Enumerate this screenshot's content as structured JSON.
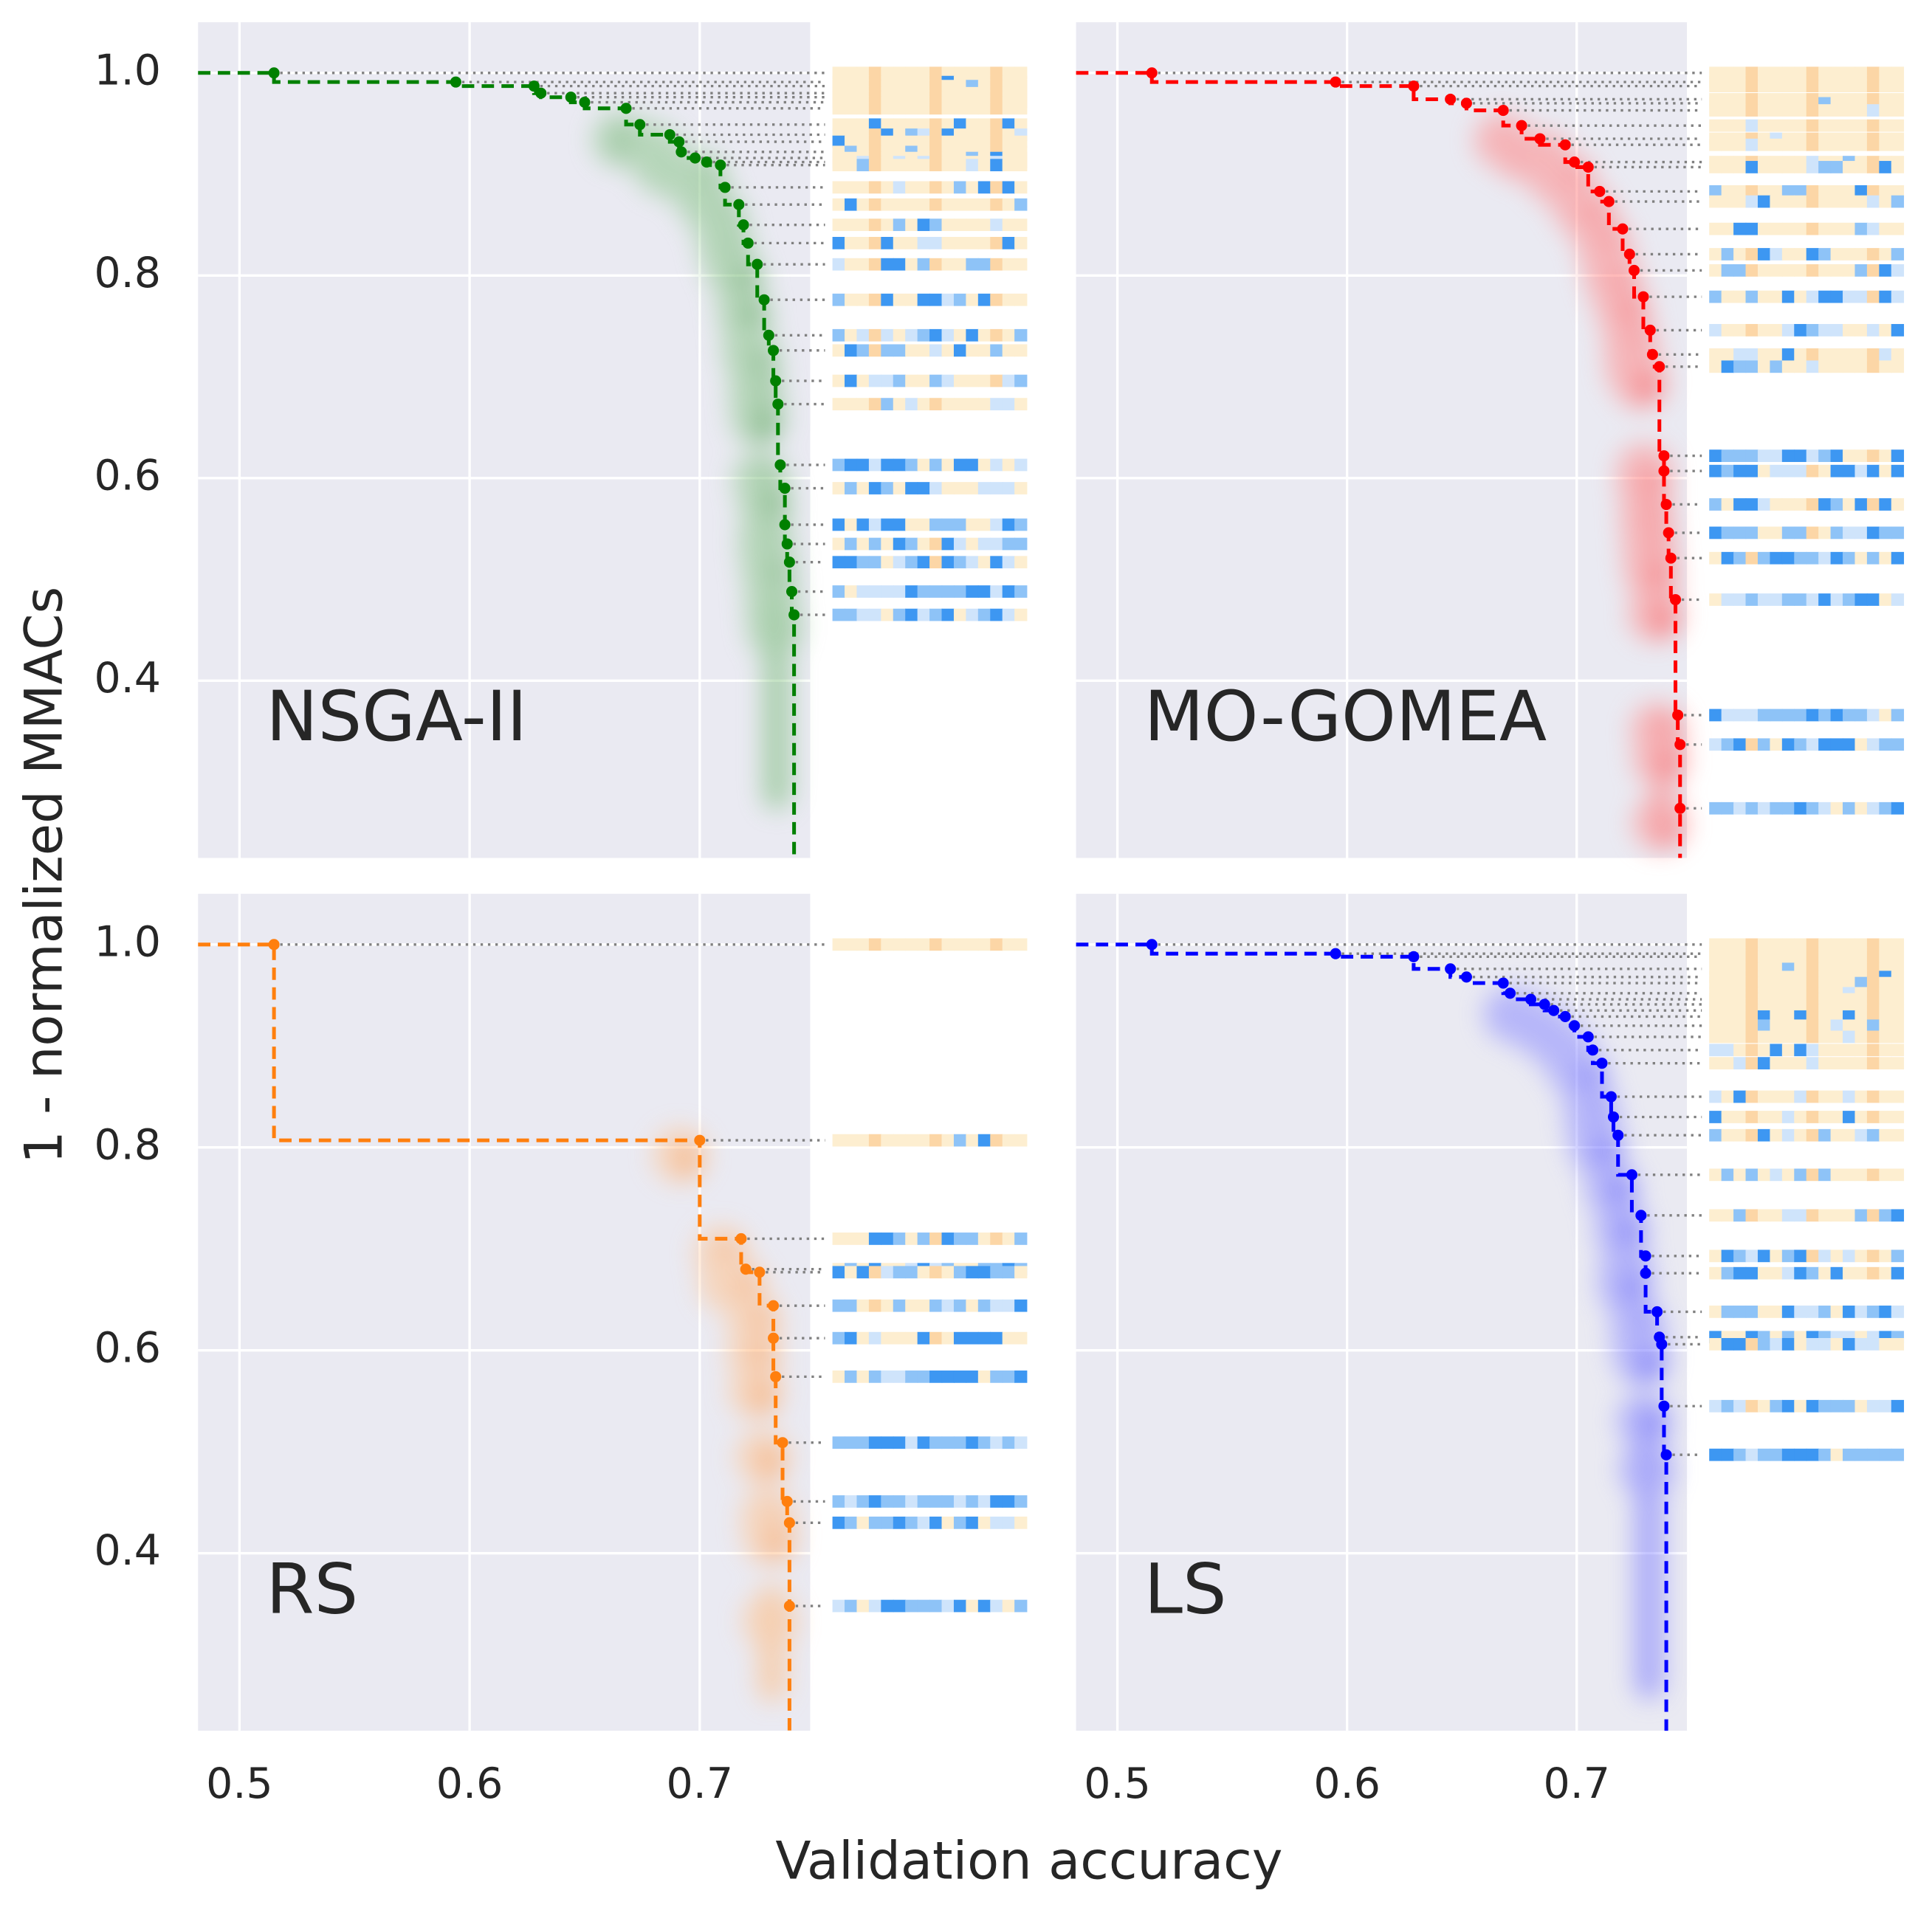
{
  "figure": {
    "xlabel": "Validation accuracy",
    "ylabel": "1 - normalized MMACs"
  },
  "chart_data": [
    {
      "type": "scatter",
      "label": "NSGA-II",
      "color": "#008000",
      "x": [
        0.515,
        0.594,
        0.628,
        0.631,
        0.644,
        0.65,
        0.668,
        0.674,
        0.687,
        0.691,
        0.692,
        0.698,
        0.703,
        0.709,
        0.711,
        0.717,
        0.719,
        0.721,
        0.725,
        0.728,
        0.73,
        0.732,
        0.733,
        0.734,
        0.735,
        0.737,
        0.737,
        0.738,
        0.739,
        0.74,
        0.741
      ],
      "y": [
        1.0,
        0.991,
        0.987,
        0.98,
        0.976,
        0.971,
        0.965,
        0.949,
        0.939,
        0.932,
        0.922,
        0.916,
        0.912,
        0.909,
        0.887,
        0.87,
        0.85,
        0.832,
        0.811,
        0.776,
        0.741,
        0.726,
        0.696,
        0.673,
        0.613,
        0.59,
        0.554,
        0.535,
        0.517,
        0.488,
        0.465
      ],
      "xlim": [
        0.482,
        0.748
      ],
      "ylim": [
        0.225,
        1.05
      ],
      "xticks": [
        0.5,
        0.6,
        0.7
      ],
      "yticks": [
        0.4,
        0.6,
        0.8,
        {
          "value": 1.0,
          "label": "1.0"
        }
      ]
    },
    {
      "type": "scatter",
      "label": "MO-GOMEA",
      "color": "#ff0000",
      "x": [
        0.515,
        0.595,
        0.629,
        0.645,
        0.652,
        0.668,
        0.676,
        0.684,
        0.695,
        0.699,
        0.705,
        0.71,
        0.714,
        0.72,
        0.723,
        0.725,
        0.729,
        0.732,
        0.733,
        0.736,
        0.738,
        0.738,
        0.739,
        0.74,
        0.741,
        0.743,
        0.744,
        0.745,
        0.745
      ],
      "y": [
        1.0,
        0.991,
        0.987,
        0.974,
        0.97,
        0.963,
        0.948,
        0.935,
        0.929,
        0.912,
        0.907,
        0.883,
        0.873,
        0.846,
        0.821,
        0.805,
        0.779,
        0.746,
        0.722,
        0.71,
        0.622,
        0.607,
        0.574,
        0.546,
        0.521,
        0.48,
        0.366,
        0.337,
        0.274
      ],
      "xlim": [
        0.482,
        0.748
      ],
      "ylim": [
        0.225,
        1.05
      ],
      "xticks": [
        0.5,
        0.6,
        0.7
      ],
      "yticks": [
        0.4,
        0.6,
        0.8,
        {
          "value": 1.0,
          "label": "1.0"
        }
      ]
    },
    {
      "type": "scatter",
      "label": "RS",
      "color": "#ff7f0e",
      "x": [
        0.515,
        0.7,
        0.718,
        0.72,
        0.726,
        0.732,
        0.732,
        0.733,
        0.736,
        0.738,
        0.739,
        0.739
      ],
      "y": [
        1.0,
        0.807,
        0.71,
        0.68,
        0.677,
        0.644,
        0.612,
        0.574,
        0.509,
        0.451,
        0.43,
        0.348
      ],
      "xlim": [
        0.482,
        0.748
      ],
      "ylim": [
        0.225,
        1.05
      ],
      "xticks": [
        0.5,
        0.6,
        0.7
      ],
      "yticks": [
        0.4,
        0.6,
        0.8,
        {
          "value": 1.0,
          "label": "1.0"
        }
      ]
    },
    {
      "type": "scatter",
      "label": "LS",
      "color": "#0000ff",
      "x": [
        0.515,
        0.595,
        0.629,
        0.645,
        0.652,
        0.668,
        0.671,
        0.68,
        0.686,
        0.69,
        0.695,
        0.699,
        0.705,
        0.707,
        0.711,
        0.715,
        0.716,
        0.718,
        0.724,
        0.728,
        0.73,
        0.73,
        0.735,
        0.736,
        0.737,
        0.738,
        0.739
      ],
      "y": [
        1.0,
        0.991,
        0.988,
        0.976,
        0.968,
        0.962,
        0.952,
        0.946,
        0.941,
        0.935,
        0.929,
        0.92,
        0.909,
        0.896,
        0.883,
        0.85,
        0.83,
        0.812,
        0.773,
        0.733,
        0.693,
        0.676,
        0.638,
        0.613,
        0.606,
        0.545,
        0.497
      ],
      "xlim": [
        0.482,
        0.748
      ],
      "ylim": [
        0.225,
        1.05
      ],
      "xticks": [
        0.5,
        0.6,
        0.7
      ],
      "yticks": [
        0.4,
        0.6,
        0.8,
        {
          "value": 1.0,
          "label": "1.0"
        }
      ]
    }
  ]
}
